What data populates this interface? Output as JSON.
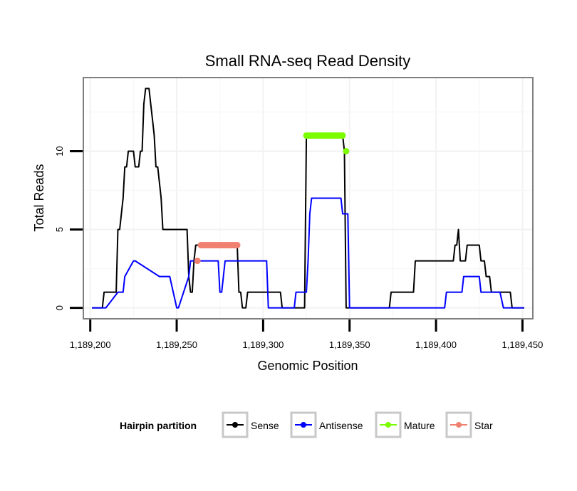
{
  "chart_data": {
    "type": "line",
    "title": "Small RNA-seq Read Density",
    "xlabel": "Genomic Position",
    "ylabel": "Total Reads",
    "xlim": [
      1189196,
      1189456
    ],
    "ylim": [
      -0.7,
      14.7
    ],
    "xticks": [
      1189200,
      1189250,
      1189300,
      1189350,
      1189400,
      1189450
    ],
    "xtick_labels": [
      "1,189,200",
      "1,189,250",
      "1,189,300",
      "1,189,350",
      "1,189,400",
      "1,189,450"
    ],
    "yticks": [
      0,
      5,
      10
    ],
    "ytick_labels": [
      "0",
      "5",
      "10"
    ],
    "grid": true,
    "legend": {
      "title": "Hairpin partition",
      "position": "bottom",
      "entries": [
        "Sense",
        "Antisense",
        "Mature",
        "Star"
      ]
    },
    "series": [
      {
        "name": "Sense",
        "color": "#000000",
        "kind": "line",
        "x": [
          1189201,
          1189207,
          1189208,
          1189215,
          1189216,
          1189217,
          1189218,
          1189219,
          1189220,
          1189221,
          1189222,
          1189225,
          1189226,
          1189228,
          1189229,
          1189230,
          1189231,
          1189232,
          1189234,
          1189235,
          1189236,
          1189237,
          1189238,
          1189239,
          1189240,
          1189241,
          1189242,
          1189243,
          1189244,
          1189245,
          1189246,
          1189247,
          1189248,
          1189249,
          1189250,
          1189251,
          1189256,
          1189257,
          1189258,
          1189259,
          1189260,
          1189261,
          1189262,
          1189263,
          1189285,
          1189286,
          1189287,
          1189288,
          1189289,
          1189290,
          1189291,
          1189292,
          1189293,
          1189294,
          1189295,
          1189296,
          1189297,
          1189310,
          1189311,
          1189312,
          1189317,
          1189318,
          1189319,
          1189320,
          1189324,
          1189325,
          1189346,
          1189347,
          1189348,
          1189349,
          1189350,
          1189373,
          1189374,
          1189375,
          1189387,
          1189388,
          1189389,
          1189408,
          1189409,
          1189410,
          1189411,
          1189412,
          1189413,
          1189414,
          1189415,
          1189416,
          1189417,
          1189418,
          1189419,
          1189425,
          1189426,
          1189427,
          1189428,
          1189429,
          1189430,
          1189431,
          1189432,
          1189433,
          1189434,
          1189443,
          1189444,
          1189451
        ],
        "y": [
          0,
          0,
          1,
          1,
          5,
          5,
          6,
          7,
          9,
          9,
          10,
          10,
          9,
          9,
          10,
          10,
          13,
          14,
          14,
          13,
          12,
          11,
          9,
          9,
          8,
          7,
          5,
          5,
          5,
          5,
          5,
          5,
          5,
          5,
          5,
          5,
          5,
          2,
          1,
          1,
          3,
          4,
          4,
          4,
          4,
          1,
          1,
          0,
          0,
          0,
          1,
          1,
          1,
          1,
          1,
          1,
          1,
          1,
          0,
          0,
          0,
          0,
          0,
          0,
          0,
          11,
          11,
          10,
          0,
          0,
          0,
          0,
          1,
          1,
          1,
          3,
          3,
          3,
          3,
          3,
          4,
          4,
          5,
          3,
          3,
          3,
          3,
          4,
          4,
          4,
          3,
          3,
          3,
          2,
          2,
          2,
          1,
          1,
          1,
          1,
          0,
          0
        ]
      },
      {
        "name": "Antisense",
        "color": "#0000ff",
        "kind": "line",
        "x": [
          1189201,
          1189208,
          1189209,
          1189216,
          1189217,
          1189219,
          1189220,
          1189225,
          1189226,
          1189240,
          1189241,
          1189245,
          1189246,
          1189250,
          1189251,
          1189257,
          1189258,
          1189274,
          1189275,
          1189276,
          1189277,
          1189278,
          1189279,
          1189302,
          1189303,
          1189318,
          1189319,
          1189325,
          1189326,
          1189327,
          1189328,
          1189329,
          1189330,
          1189345,
          1189346,
          1189349,
          1189350,
          1189405,
          1189406,
          1189414,
          1189415,
          1189416,
          1189417,
          1189424,
          1189425,
          1189426,
          1189427,
          1189436,
          1189437,
          1189439,
          1189440,
          1189441,
          1189442,
          1189451
        ],
        "y": [
          0,
          0,
          0,
          1,
          1,
          1,
          2,
          3,
          3,
          2,
          2,
          2,
          2,
          0,
          0,
          2,
          3,
          3,
          1,
          1,
          2,
          3,
          3,
          3,
          0,
          0,
          1,
          1,
          3,
          6,
          7,
          7,
          7,
          7,
          6,
          6,
          0,
          0,
          1,
          1,
          1,
          2,
          2,
          2,
          2,
          1,
          1,
          1,
          1,
          0,
          0,
          0,
          0,
          0
        ]
      },
      {
        "name": "Mature",
        "color": "#7cfc00",
        "kind": "points",
        "x": [
          1189325,
          1189326,
          1189327,
          1189328,
          1189329,
          1189330,
          1189331,
          1189332,
          1189333,
          1189334,
          1189335,
          1189336,
          1189337,
          1189338,
          1189339,
          1189340,
          1189341,
          1189342,
          1189343,
          1189344,
          1189345,
          1189346,
          1189348
        ],
        "y": [
          11,
          11,
          11,
          11,
          11,
          11,
          11,
          11,
          11,
          11,
          11,
          11,
          11,
          11,
          11,
          11,
          11,
          11,
          11,
          11,
          11,
          11,
          10
        ]
      },
      {
        "name": "Star",
        "color": "#f08070",
        "kind": "points",
        "x": [
          1189262,
          1189264,
          1189265,
          1189266,
          1189267,
          1189268,
          1189269,
          1189270,
          1189271,
          1189272,
          1189273,
          1189274,
          1189275,
          1189276,
          1189277,
          1189278,
          1189279,
          1189280,
          1189281,
          1189282,
          1189283,
          1189284,
          1189285
        ],
        "y": [
          3,
          4,
          4,
          4,
          4,
          4,
          4,
          4,
          4,
          4,
          4,
          4,
          4,
          4,
          4,
          4,
          4,
          4,
          4,
          4,
          4,
          4,
          4
        ]
      }
    ]
  }
}
